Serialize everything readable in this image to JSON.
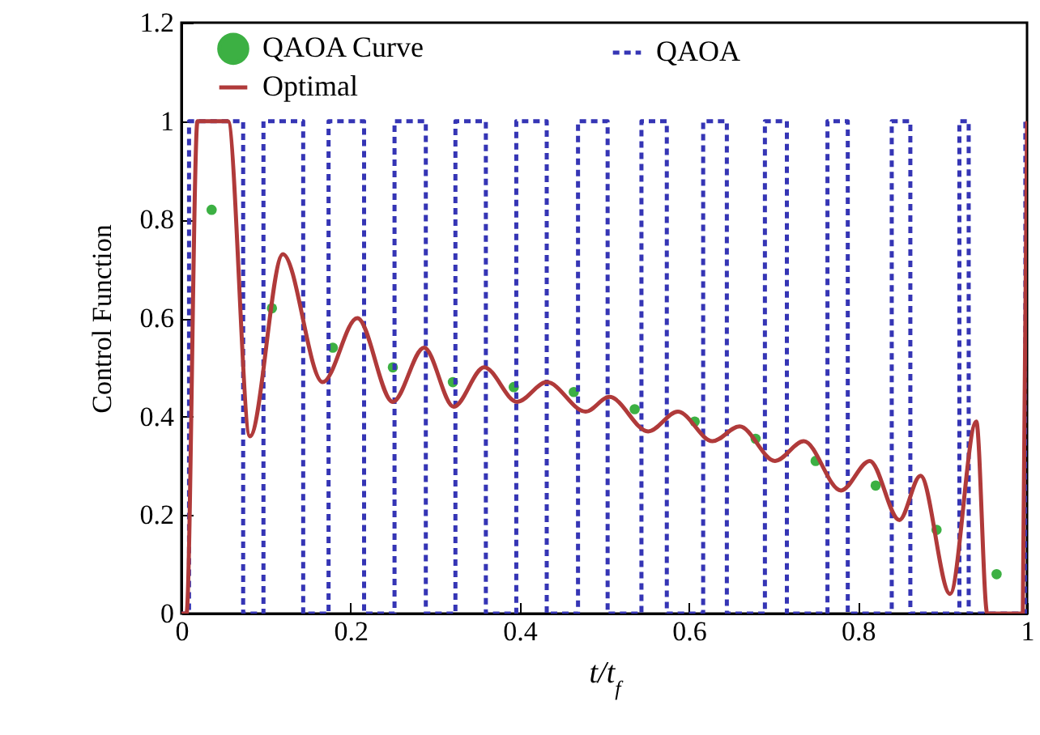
{
  "chart_data": {
    "type": "line",
    "xlabel": "t/t$_{f}$",
    "ylabel": "Control Function",
    "xlim": [
      0,
      1
    ],
    "ylim": [
      0,
      1.2
    ],
    "xticks": [
      0,
      0.2,
      0.4,
      0.6,
      0.8,
      1
    ],
    "yticks": [
      0,
      0.2,
      0.4,
      0.6,
      0.8,
      1,
      1.2
    ],
    "grid": false,
    "legend": "top",
    "series": [
      {
        "name": "QAOA Curve",
        "type": "scatter",
        "marker": "circle",
        "color": "#3cb043",
        "x": [
          0.0357,
          0.107,
          0.179,
          0.25,
          0.321,
          0.393,
          0.464,
          0.536,
          0.607,
          0.679,
          0.75,
          0.821,
          0.893,
          0.964
        ],
        "values": [
          0.82,
          0.62,
          0.54,
          0.5,
          0.47,
          0.46,
          0.45,
          0.415,
          0.39,
          0.355,
          0.31,
          0.26,
          0.17,
          0.08
        ]
      },
      {
        "name": "QAOA",
        "type": "step",
        "line_style": "dashed",
        "color": "#3535b5",
        "x": [
          0,
          0.009,
          0.073,
          0.097,
          0.144,
          0.174,
          0.216,
          0.252,
          0.289,
          0.324,
          0.36,
          0.396,
          0.432,
          0.469,
          0.504,
          0.544,
          0.574,
          0.617,
          0.645,
          0.69,
          0.716,
          0.764,
          0.788,
          0.84,
          0.862,
          0.92,
          0.931,
          0.998,
          1
        ],
        "values": [
          0,
          1,
          0,
          1,
          0,
          1,
          0,
          1,
          0,
          1,
          0,
          1,
          0,
          1,
          0,
          1,
          0,
          1,
          0,
          1,
          0,
          1,
          0,
          1,
          0,
          1,
          0,
          1,
          1
        ]
      },
      {
        "name": "Optimal",
        "type": "line",
        "line_style": "solid",
        "color": "#b03a3a",
        "x": [
          0,
          0.006,
          0.019,
          0.055,
          0.081,
          0.12,
          0.167,
          0.208,
          0.25,
          0.287,
          0.322,
          0.358,
          0.397,
          0.432,
          0.478,
          0.506,
          0.552,
          0.587,
          0.628,
          0.66,
          0.702,
          0.736,
          0.78,
          0.814,
          0.849,
          0.874,
          0.909,
          0.94,
          0.953,
          0.995,
          1
        ],
        "values": [
          0,
          0,
          1,
          1,
          0.36,
          0.73,
          0.47,
          0.6,
          0.43,
          0.54,
          0.42,
          0.5,
          0.43,
          0.47,
          0.41,
          0.44,
          0.37,
          0.41,
          0.35,
          0.38,
          0.31,
          0.35,
          0.25,
          0.31,
          0.19,
          0.28,
          0.04,
          0.39,
          0,
          0,
          1
        ]
      }
    ]
  }
}
